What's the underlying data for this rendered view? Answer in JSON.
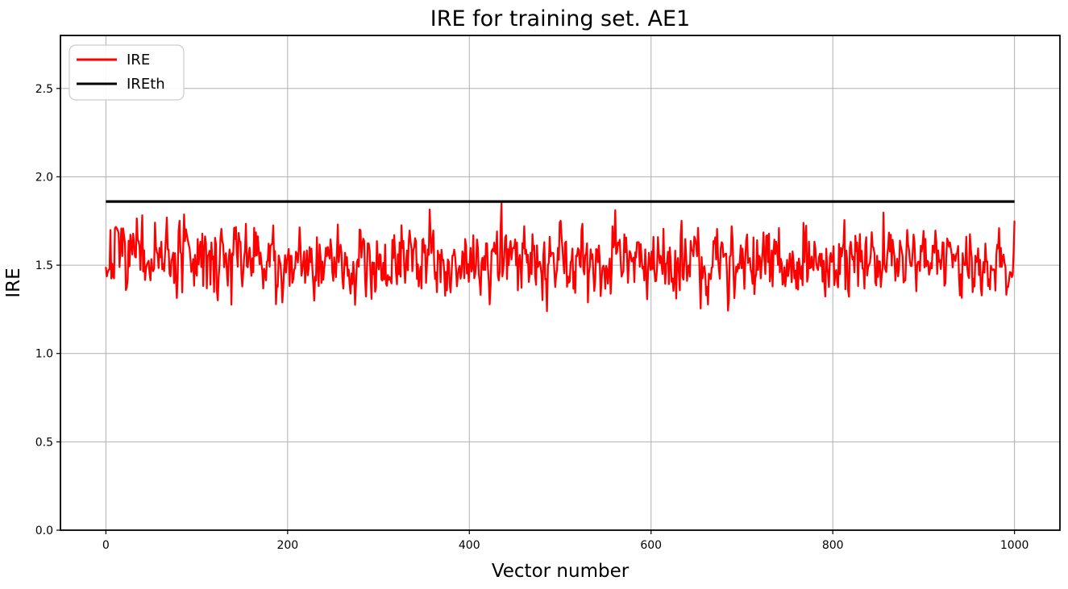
{
  "chart_data": {
    "type": "line",
    "title": "IRE for training set. AE1",
    "xlabel": "Vector number",
    "ylabel": "IRE",
    "xlim": [
      -50,
      1050
    ],
    "ylim": [
      0,
      2.8
    ],
    "xticks": [
      0,
      200,
      400,
      600,
      800,
      1000
    ],
    "xtick_labels": [
      "0",
      "200",
      "400",
      "600",
      "800",
      "1000"
    ],
    "yticks": [
      0.0,
      0.5,
      1.0,
      1.5,
      2.0,
      2.5
    ],
    "ytick_labels": [
      "0.0",
      "0.5",
      "1.0",
      "1.5",
      "2.0",
      "2.5"
    ],
    "grid": true,
    "grid_color": "#b0b0b0",
    "axis_color": "#000000",
    "background_color": "#ffffff",
    "legend": {
      "position": "upper-left",
      "border_color": "#cccccc",
      "fill_color": "#ffffff",
      "entries": [
        {
          "label": "IRE",
          "color": "#ff0000"
        },
        {
          "label": "IREth",
          "color": "#000000"
        }
      ]
    },
    "series": [
      {
        "name": "IRE",
        "kind": "noisy-line",
        "color": "#ff0000",
        "line_width": 2.3,
        "x_start": 0,
        "x_end": 1000,
        "n_points": 1000,
        "mean": 1.53,
        "std": 0.1,
        "min": 1.24,
        "max": 1.85,
        "autocorrelation": 0.3,
        "peak": {
          "x": 435,
          "value": 1.85
        },
        "seed": 7
      },
      {
        "name": "IREth",
        "kind": "hline",
        "color": "#000000",
        "line_width": 3.2,
        "x_start": 0,
        "x_end": 1000,
        "value": 1.86
      }
    ]
  }
}
